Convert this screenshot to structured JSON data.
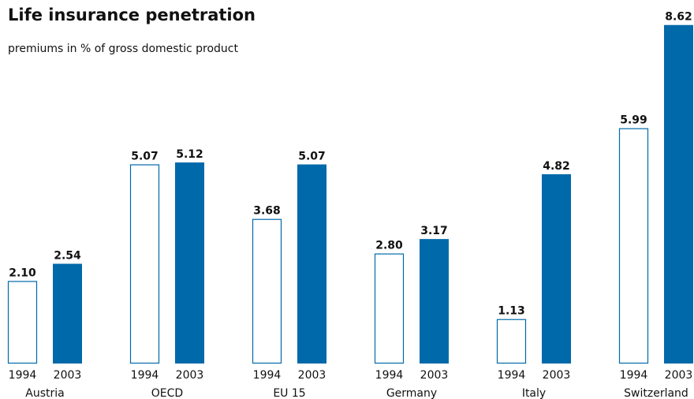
{
  "chart_data": {
    "type": "bar",
    "title": "Life insurance penetration",
    "subtitle": "premiums in % of gross domestic product",
    "categories": [
      "Austria",
      "OECD",
      "EU 15",
      "Germany",
      "Italy",
      "Switzerland"
    ],
    "series": [
      {
        "name": "1994",
        "color": "#0069aa",
        "style": "outline",
        "values": [
          2.1,
          5.07,
          3.68,
          2.8,
          1.13,
          5.99
        ],
        "value_labels": [
          "2.10",
          "5.07",
          "3.68",
          "2.80",
          "1.13",
          "5.99"
        ]
      },
      {
        "name": "2003",
        "color": "#0069aa",
        "style": "filled",
        "values": [
          2.54,
          5.12,
          5.07,
          3.17,
          4.82,
          8.62
        ],
        "value_labels": [
          "2.54",
          "5.12",
          "5.07",
          "3.17",
          "4.82",
          "8.62"
        ]
      }
    ]
  }
}
